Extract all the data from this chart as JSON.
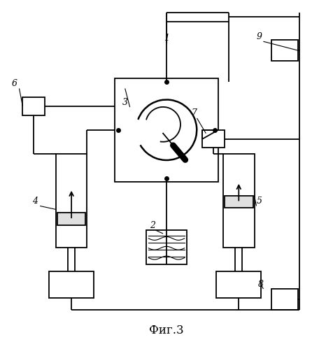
{
  "title": "Фиг.3",
  "background_color": "#ffffff",
  "line_color": "#000000",
  "fig_width": 4.77,
  "fig_height": 4.99
}
